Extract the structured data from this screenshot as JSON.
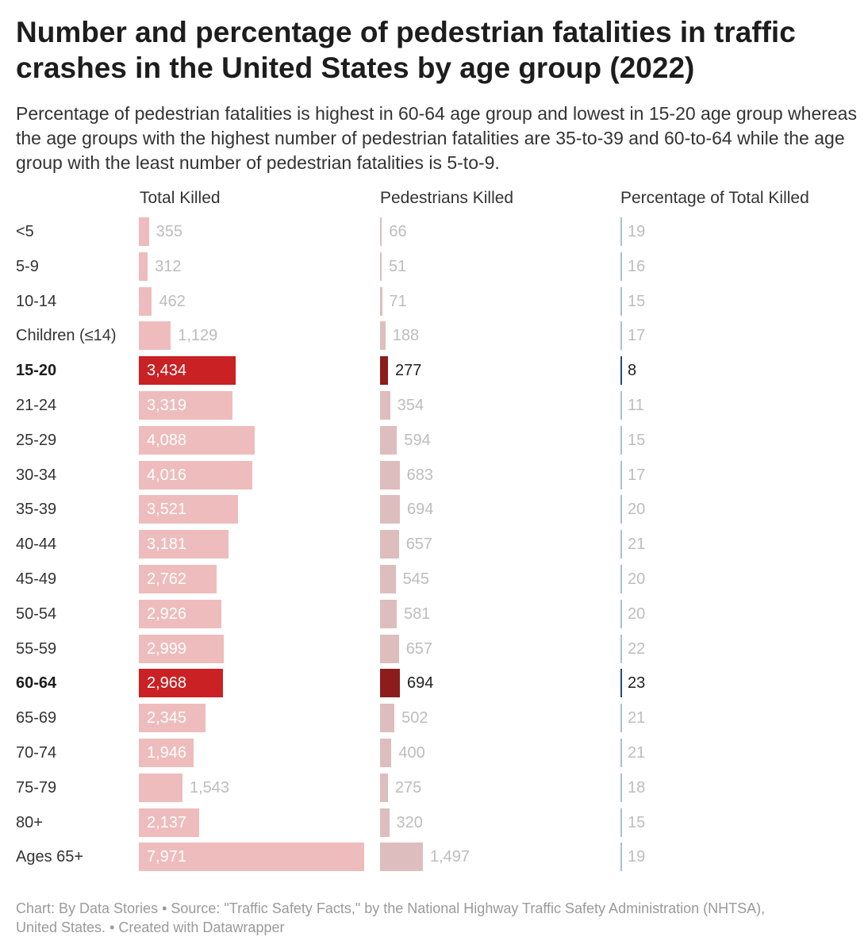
{
  "title": "Number and percentage of pedestrian fatalities in traffic crashes in the United States by age group (2022)",
  "subtitle": "Percentage of pedestrian fatalities is highest in 60-64 age group and lowest in 15-20 age group whereas the age groups with the highest number of pedestrian fatalities are 35-to-39 and 60-to-64 while the age group with the least number of pedestrian fatalities is 5-to-9.",
  "footer": {
    "line1": "Chart: By Data Stories • Source: \"Traffic Safety Facts,\" by the National Highway Traffic Safety Administration (NHTSA),",
    "line2": "United States.  • Created with Datawrapper"
  },
  "colors": {
    "total_muted": "#eebcbc",
    "total_highlight": "#c92124",
    "ped_muted": "#ddbdbd",
    "ped_highlight": "#8d1d1d",
    "pct_muted": "#a9c0d3",
    "pct_highlight": "#1f4e78",
    "value_muted": "#bdbdbd",
    "value_dark": "#222222",
    "value_inside": "#ffffff"
  },
  "chart_data": {
    "type": "table",
    "columns": [
      "Total Killed",
      "Pedestrians Killed",
      "Percentage of Total Killed"
    ],
    "categories": [
      "<5",
      "5-9",
      "10-14",
      "Children (≤14)",
      "15-20",
      "21-24",
      "25-29",
      "30-34",
      "35-39",
      "40-44",
      "45-49",
      "50-54",
      "55-59",
      "60-64",
      "65-69",
      "70-74",
      "75-79",
      "80+",
      "Ages 65+"
    ],
    "highlighted": [
      "15-20",
      "60-64"
    ],
    "series": [
      {
        "name": "Total Killed",
        "values": [
          355,
          312,
          462,
          1129,
          3434,
          3319,
          4088,
          4016,
          3521,
          3181,
          2762,
          2926,
          2999,
          2968,
          2345,
          1946,
          1543,
          2137,
          7971
        ],
        "labels": [
          "355",
          "312",
          "462",
          "1,129",
          "3,434",
          "3,319",
          "4,088",
          "4,016",
          "3,521",
          "3,181",
          "2,762",
          "2,926",
          "2,999",
          "2,968",
          "2,345",
          "1,946",
          "1,543",
          "2,137",
          "7,971"
        ]
      },
      {
        "name": "Pedestrians Killed",
        "values": [
          66,
          51,
          71,
          188,
          277,
          354,
          594,
          683,
          694,
          657,
          545,
          581,
          657,
          694,
          502,
          400,
          275,
          320,
          1497
        ],
        "labels": [
          "66",
          "51",
          "71",
          "188",
          "277",
          "354",
          "594",
          "683",
          "694",
          "657",
          "545",
          "581",
          "657",
          "694",
          "502",
          "400",
          "275",
          "320",
          "1,497"
        ]
      },
      {
        "name": "Percentage of Total Killed",
        "values": [
          19,
          16,
          15,
          17,
          8,
          11,
          15,
          17,
          20,
          21,
          20,
          20,
          22,
          23,
          21,
          21,
          18,
          15,
          19
        ],
        "labels": [
          "19",
          "16",
          "15",
          "17",
          "8",
          "11",
          "15",
          "17",
          "20",
          "21",
          "20",
          "20",
          "22",
          "23",
          "21",
          "21",
          "18",
          "15",
          "19"
        ]
      }
    ]
  }
}
